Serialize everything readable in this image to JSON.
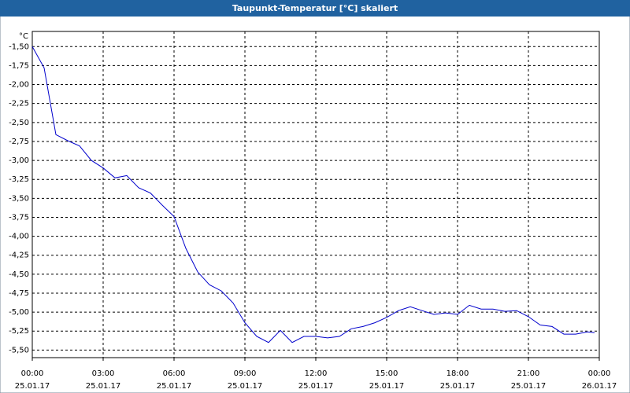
{
  "chart_data": {
    "type": "line",
    "title": "Taupunkt-Temperatur [°C] skaliert",
    "y_unit": "°C",
    "color": "#0000cc",
    "grid": true,
    "x": [
      0,
      0.5,
      1,
      1.5,
      2,
      2.5,
      3,
      3.5,
      4,
      4.5,
      5,
      5.5,
      6,
      6.5,
      7,
      7.5,
      8,
      8.5,
      9,
      9.5,
      10,
      10.5,
      11,
      11.5,
      12,
      12.5,
      13,
      13.5,
      14,
      14.5,
      15,
      15.5,
      16,
      16.5,
      17,
      17.5,
      18,
      18.5,
      19,
      19.5,
      20,
      20.5,
      21,
      21.5,
      22,
      22.5,
      23,
      23.5,
      23.8
    ],
    "values": [
      -1.5,
      -1.78,
      -2.66,
      -2.74,
      -2.81,
      -3.0,
      -3.1,
      -3.23,
      -3.2,
      -3.36,
      -3.43,
      -3.59,
      -3.74,
      -4.16,
      -4.47,
      -4.64,
      -4.72,
      -4.88,
      -5.14,
      -5.32,
      -5.4,
      -5.24,
      -5.4,
      -5.32,
      -5.32,
      -5.34,
      -5.32,
      -5.22,
      -5.19,
      -5.14,
      -5.07,
      -4.98,
      -4.93,
      -4.98,
      -5.03,
      -5.01,
      -5.03,
      -4.91,
      -4.96,
      -4.96,
      -4.99,
      -4.98,
      -5.06,
      -5.17,
      -5.19,
      -5.29,
      -5.29,
      -5.26,
      -5.27
    ],
    "xlim": [
      0,
      24
    ],
    "ylim": [
      -5.6,
      -1.3
    ],
    "xticks": [
      {
        "value": 0,
        "label": "00:00",
        "date": "25.01.17"
      },
      {
        "value": 3,
        "label": "03:00",
        "date": "25.01.17"
      },
      {
        "value": 6,
        "label": "06:00",
        "date": "25.01.17"
      },
      {
        "value": 9,
        "label": "09:00",
        "date": "25.01.17"
      },
      {
        "value": 12,
        "label": "12:00",
        "date": "25.01.17"
      },
      {
        "value": 15,
        "label": "15:00",
        "date": "25.01.17"
      },
      {
        "value": 18,
        "label": "18:00",
        "date": "25.01.17"
      },
      {
        "value": 21,
        "label": "21:00",
        "date": "25.01.17"
      },
      {
        "value": 24,
        "label": "00:00",
        "date": "26.01.17"
      }
    ],
    "yticks": [
      {
        "value": -1.5,
        "label": "-1,50"
      },
      {
        "value": -1.75,
        "label": "-1,75"
      },
      {
        "value": -2,
        "label": "-2,00"
      },
      {
        "value": -2.25,
        "label": "-2,25"
      },
      {
        "value": -2.5,
        "label": "-2,50"
      },
      {
        "value": -2.75,
        "label": "-2,75"
      },
      {
        "value": -3,
        "label": "-3,00"
      },
      {
        "value": -3.25,
        "label": "-3,25"
      },
      {
        "value": -3.5,
        "label": "-3,50"
      },
      {
        "value": -3.75,
        "label": "-3,75"
      },
      {
        "value": -4,
        "label": "-4,00"
      },
      {
        "value": -4.25,
        "label": "-4,25"
      },
      {
        "value": -4.5,
        "label": "-4,50"
      },
      {
        "value": -4.75,
        "label": "-4,75"
      },
      {
        "value": -5,
        "label": "-5,00"
      },
      {
        "value": -5.25,
        "label": "-5,25"
      },
      {
        "value": -5.5,
        "label": "-5,50"
      }
    ]
  }
}
